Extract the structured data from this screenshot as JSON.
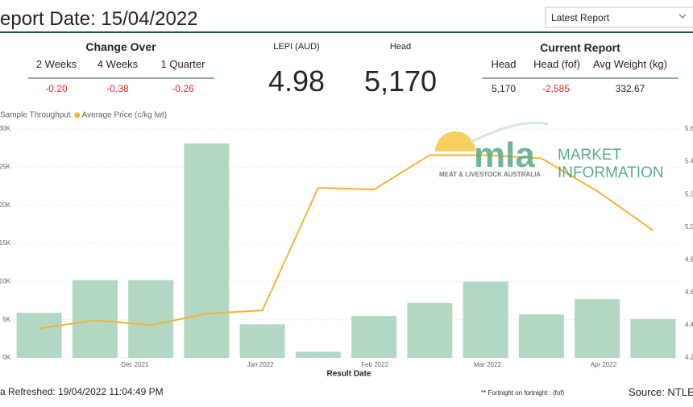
{
  "header": {
    "title": "eport Date: 15/04/2022",
    "dropdown": "Latest Report"
  },
  "change_over": {
    "title": "Change Over",
    "columns": [
      "2 Weeks",
      "4 Weeks",
      "1 Quarter"
    ],
    "values": [
      "-0.20",
      "-0.38",
      "-0.26"
    ]
  },
  "lepi": {
    "label": "LEPI (AUD)",
    "value": "4.98"
  },
  "head": {
    "label": "Head",
    "value": "5,170"
  },
  "current_report": {
    "title": "Current Report",
    "columns": [
      "Head",
      "Head (fof)",
      "Avg Weight (kg)"
    ],
    "values": [
      "5,170",
      "-2,585",
      "332.67"
    ]
  },
  "logo": {
    "mla": "mla",
    "subtitle": "MEAT & LIVESTOCK AUSTRALIA",
    "market": "MARKET",
    "information": "INFORMATION"
  },
  "footer": {
    "refreshed": "a Refreshed: 19/04/2022 11:04:49 PM",
    "note": "** Fortnight on fortnight : (fof)",
    "source": "Source: NTLEA"
  },
  "chart_data": {
    "type": "bar_line",
    "x_label": "Result Date",
    "categories": [
      null,
      null,
      null,
      null,
      null,
      null,
      null,
      null,
      null,
      null,
      null,
      null
    ],
    "xtick_labels": [
      "Dec 2021",
      "Jan 2022",
      "Feb 2022",
      "Mar 2022",
      "Apr 2022"
    ],
    "series": [
      {
        "name": "Sample Throughput",
        "color": "#b2d8c4",
        "values": [
          5900,
          10200,
          10200,
          28100,
          4400,
          800,
          5500,
          7200,
          10000,
          5700,
          7700,
          5100
        ]
      },
      {
        "name": "Average Price (c/kg lwt)",
        "color": "#f5b335",
        "axis": "y2",
        "values": [
          4.38,
          4.43,
          4.4,
          4.47,
          4.49,
          5.24,
          5.23,
          5.44,
          5.44,
          5.42,
          5.22,
          4.98
        ]
      }
    ],
    "ylim": [
      0,
      30000
    ],
    "yticks": [
      {
        "value": 0,
        "label": "0K"
      },
      {
        "value": 5000,
        "label": "5K"
      },
      {
        "value": 10000,
        "label": "10K"
      },
      {
        "value": 15000,
        "label": "15K"
      },
      {
        "value": 20000,
        "label": "20K"
      },
      {
        "value": 25000,
        "label": "25K"
      },
      {
        "value": 30000,
        "label": "30K"
      }
    ],
    "y2lim": [
      4.2,
      5.6
    ],
    "y2ticks": [
      4.2,
      4.4,
      4.6,
      4.8,
      {
        "value": 5,
        "label": "5.0"
      },
      5.2,
      5.4,
      5.6
    ],
    "grid": true
  }
}
